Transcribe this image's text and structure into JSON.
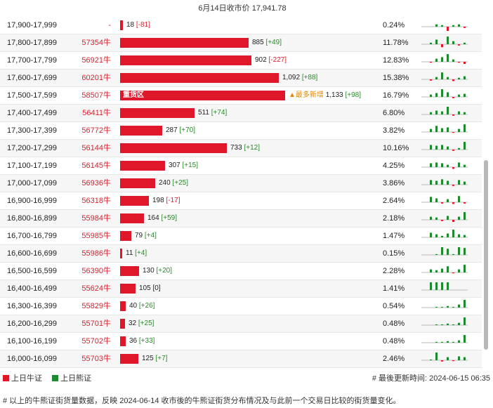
{
  "header": {
    "title": "6月14日收市价 17,941.78"
  },
  "rows": [
    {
      "range": "17,900-17,999",
      "code": "-",
      "value": "18",
      "change": "[-81]",
      "change_sign": "neg",
      "pct": "0.24%",
      "ratio": 0.016,
      "spark": [
        0,
        0,
        0.3,
        0.2,
        -1,
        0.2,
        0.3,
        -0.3
      ]
    },
    {
      "range": "17,800-17,899",
      "code": "57354牛",
      "value": "885",
      "change": "[+49]",
      "change_sign": "pos",
      "pct": "11.78%",
      "ratio": 0.78,
      "spark": [
        0,
        0.2,
        0.6,
        -0.7,
        1,
        0.4,
        -0.3,
        0.2
      ]
    },
    {
      "range": "17,700-17,799",
      "code": "56921牛",
      "value": "902",
      "change": "[-227]",
      "change_sign": "neg",
      "pct": "12.83%",
      "ratio": 0.795,
      "spark": [
        0,
        -0.2,
        0.4,
        0.6,
        1,
        0.3,
        -0.2,
        -0.5
      ]
    },
    {
      "range": "17,600-17,699",
      "code": "60201牛",
      "value": "1,092",
      "change": "[+88]",
      "change_sign": "pos",
      "pct": "15.38%",
      "ratio": 0.963,
      "spark": [
        0,
        -0.3,
        0.3,
        0.9,
        0.3,
        -0.4,
        0.2,
        0.4
      ]
    },
    {
      "range": "17,500-17,599",
      "code": "58507牛",
      "value": "1,133",
      "change": "[+98]",
      "change_sign": "pos",
      "pct": "16.79%",
      "ratio": 1.0,
      "heavy": "重货区",
      "most": "▲最多新增",
      "spark": [
        0,
        0.3,
        0.5,
        1,
        0.6,
        -0.3,
        0.3,
        0.4
      ]
    },
    {
      "range": "17,400-17,499",
      "code": "56411牛",
      "value": "511",
      "change": "[+74]",
      "change_sign": "pos",
      "pct": "6.80%",
      "ratio": 0.45,
      "spark": [
        0,
        0.3,
        0.5,
        0.4,
        1,
        -0.3,
        0.4,
        0.3
      ]
    },
    {
      "range": "17,300-17,399",
      "code": "56772牛",
      "value": "287",
      "change": "[+70]",
      "change_sign": "pos",
      "pct": "3.82%",
      "ratio": 0.254,
      "spark": [
        0,
        0.4,
        0.8,
        0.5,
        0.6,
        -0.2,
        0.4,
        1
      ]
    },
    {
      "range": "17,200-17,299",
      "code": "56144牛",
      "value": "733",
      "change": "[+12]",
      "change_sign": "pos",
      "pct": "10.16%",
      "ratio": 0.647,
      "spark": [
        0,
        0.6,
        0.5,
        0.6,
        0.4,
        -0.3,
        0.2,
        1
      ]
    },
    {
      "range": "17,100-17,199",
      "code": "56145牛",
      "value": "307",
      "change": "[+15]",
      "change_sign": "pos",
      "pct": "4.25%",
      "ratio": 0.271,
      "spark": [
        0,
        0.5,
        0.6,
        0.5,
        0.3,
        -0.4,
        0.6,
        0.3
      ]
    },
    {
      "range": "17,000-17,099",
      "code": "56936牛",
      "value": "240",
      "change": "[+25]",
      "change_sign": "pos",
      "pct": "3.86%",
      "ratio": 0.212,
      "spark": [
        0,
        0.6,
        0.5,
        0.7,
        0.5,
        -0.3,
        0.6,
        0.4
      ]
    },
    {
      "range": "16,900-16,999",
      "code": "56318牛",
      "value": "198",
      "change": "[-17]",
      "change_sign": "neg",
      "pct": "2.64%",
      "ratio": 0.175,
      "spark": [
        0,
        0.7,
        0.5,
        -0.3,
        0.4,
        -0.4,
        0.8,
        -0.3
      ]
    },
    {
      "range": "16,800-16,899",
      "code": "55984牛",
      "value": "164",
      "change": "[+59]",
      "change_sign": "pos",
      "pct": "2.18%",
      "ratio": 0.145,
      "spark": [
        0,
        0.4,
        0.3,
        -0.3,
        0.5,
        -0.5,
        0.4,
        1
      ]
    },
    {
      "range": "16,700-16,799",
      "code": "55985牛",
      "value": "79",
      "change": "[+4]",
      "change_sign": "pos",
      "pct": "1.47%",
      "ratio": 0.07,
      "spark": [
        0,
        0.6,
        0.4,
        0.2,
        0.5,
        1,
        0.4,
        0.3
      ]
    },
    {
      "range": "16,600-16,699",
      "code": "55986牛",
      "value": "11",
      "change": "[+4]",
      "change_sign": "pos",
      "pct": "0.15%",
      "ratio": 0.01,
      "spark": [
        0,
        0,
        0.1,
        1,
        0.8,
        0.1,
        1,
        0.9
      ]
    },
    {
      "range": "16,500-16,599",
      "code": "56390牛",
      "value": "130",
      "change": "[+20]",
      "change_sign": "pos",
      "pct": "2.28%",
      "ratio": 0.115,
      "spark": [
        0,
        0.4,
        0.3,
        0.5,
        0.8,
        -0.2,
        0.4,
        1
      ]
    },
    {
      "range": "16,400-16,499",
      "code": "55624牛",
      "value": "105",
      "change": "[0]",
      "change_sign": "zero",
      "pct": "1.41%",
      "ratio": 0.093,
      "spark": [
        0,
        1,
        1,
        1,
        1,
        0,
        0,
        0
      ]
    },
    {
      "range": "16,300-16,399",
      "code": "55829牛",
      "value": "40",
      "change": "[+26]",
      "change_sign": "pos",
      "pct": "0.54%",
      "ratio": 0.035,
      "spark": [
        0,
        0,
        0.1,
        0.1,
        0.2,
        0.1,
        0.4,
        1
      ]
    },
    {
      "range": "16,200-16,299",
      "code": "55701牛",
      "value": "32",
      "change": "[+25]",
      "change_sign": "pos",
      "pct": "0.48%",
      "ratio": 0.028,
      "spark": [
        0,
        0,
        0.1,
        0.1,
        0.2,
        0.1,
        0.3,
        1
      ]
    },
    {
      "range": "16,100-16,199",
      "code": "55702牛",
      "value": "36",
      "change": "[+33]",
      "change_sign": "pos",
      "pct": "0.48%",
      "ratio": 0.032,
      "spark": [
        0,
        0,
        0.1,
        0.1,
        0.2,
        0.1,
        0.3,
        1
      ]
    },
    {
      "range": "16,000-16,099",
      "code": "55703牛",
      "value": "125",
      "change": "[+7]",
      "change_sign": "pos",
      "pct": "2.46%",
      "ratio": 0.11,
      "spark": [
        0,
        0.1,
        1,
        -0.3,
        0.4,
        -0.2,
        0.5,
        0.4
      ]
    }
  ],
  "legend": {
    "bull": "上日牛证",
    "bear": "上日熊证"
  },
  "update": "# 最後更新時间: 2024-06-15 06:35",
  "footnote": "# 以上的牛熊证街货量数据，反映 2024-06-14 收市後的牛熊证街货分布情况及与此前一个交易日比较的街货量变化。",
  "colors": {
    "bull": "#e0162b",
    "bear": "#1e8a2e",
    "positive_change": "#2a8a2a",
    "negative_change": "#d9202f"
  }
}
